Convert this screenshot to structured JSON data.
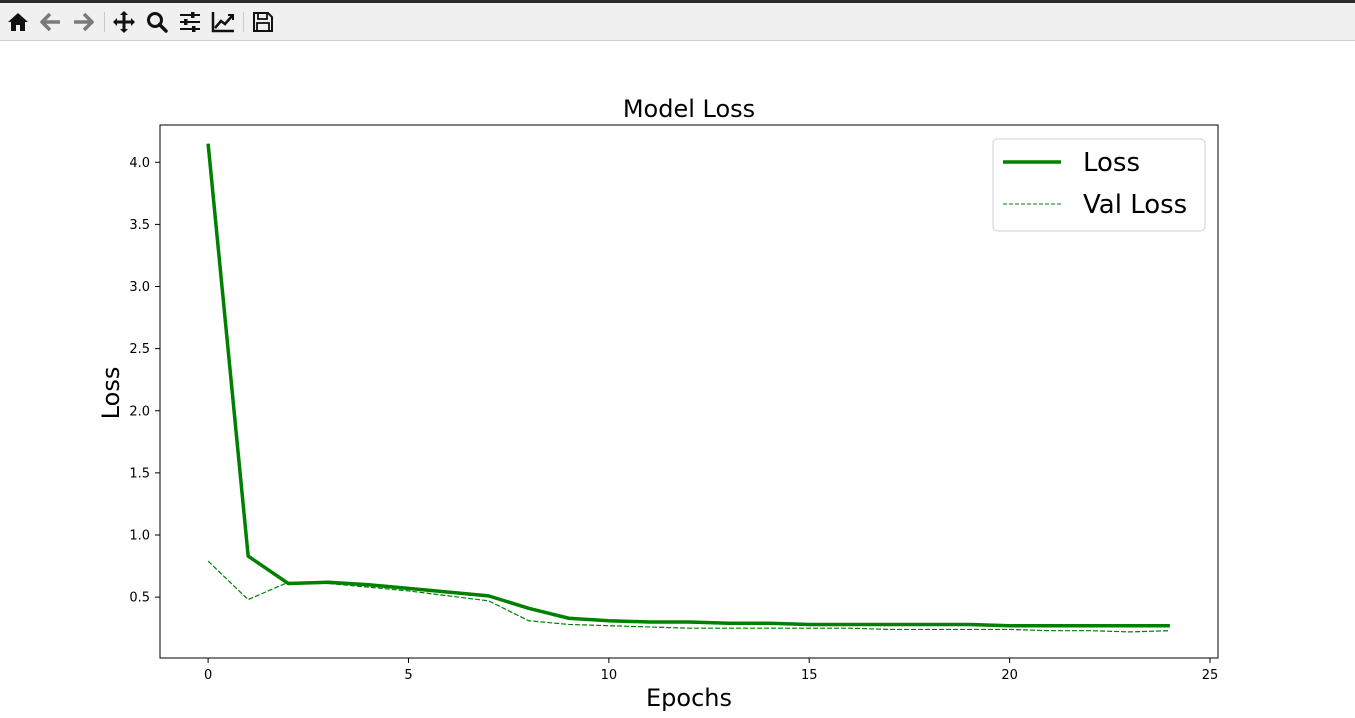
{
  "toolbar": {
    "buttons": [
      {
        "name": "home-icon",
        "label": "Home"
      },
      {
        "name": "back-arrow-icon",
        "label": "Back"
      },
      {
        "name": "forward-arrow-icon",
        "label": "Forward"
      },
      {
        "name": "pan-icon",
        "label": "Pan"
      },
      {
        "name": "zoom-icon",
        "label": "Zoom"
      },
      {
        "name": "configure-subplots-icon",
        "label": "Subplots"
      },
      {
        "name": "edit-axis-icon",
        "label": "Customize"
      },
      {
        "name": "save-icon",
        "label": "Save"
      }
    ]
  },
  "chart_data": {
    "type": "line",
    "title": "Model Loss",
    "xlabel": "Epochs",
    "ylabel": "Loss",
    "xlim": [
      -1.2,
      25.2
    ],
    "ylim": [
      0.01,
      4.3
    ],
    "xticks": [
      0,
      5,
      10,
      15,
      20,
      25
    ],
    "yticks": [
      0.5,
      1.0,
      1.5,
      2.0,
      2.5,
      3.0,
      3.5,
      4.0
    ],
    "grid": false,
    "legend_position": "top-right",
    "x": [
      0,
      1,
      2,
      3,
      4,
      5,
      6,
      7,
      8,
      9,
      10,
      11,
      12,
      13,
      14,
      15,
      16,
      17,
      18,
      19,
      20,
      21,
      22,
      23,
      24
    ],
    "series": [
      {
        "name": "Loss",
        "color": "#008000",
        "style": "solid",
        "values": [
          4.15,
          0.83,
          0.61,
          0.62,
          0.6,
          0.57,
          0.54,
          0.51,
          0.41,
          0.33,
          0.31,
          0.3,
          0.3,
          0.29,
          0.29,
          0.28,
          0.28,
          0.28,
          0.28,
          0.28,
          0.27,
          0.27,
          0.27,
          0.27,
          0.27
        ]
      },
      {
        "name": "Val Loss",
        "color": "#008000",
        "style": "dashed",
        "values": [
          0.79,
          0.48,
          0.62,
          0.61,
          0.58,
          0.55,
          0.51,
          0.47,
          0.31,
          0.28,
          0.27,
          0.26,
          0.25,
          0.25,
          0.25,
          0.25,
          0.25,
          0.24,
          0.24,
          0.24,
          0.24,
          0.23,
          0.23,
          0.22,
          0.23
        ]
      }
    ]
  }
}
